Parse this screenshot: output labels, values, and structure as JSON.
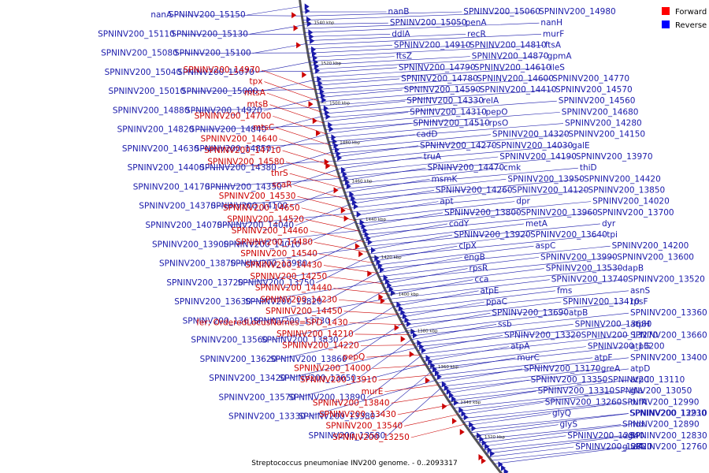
{
  "caption": "Streptococcus pneumoniae INV200 genome. - 0..2093317",
  "legend": [
    {
      "label": "Forward",
      "color": "#ff0000"
    },
    {
      "label": "Reverse",
      "color": "#0000ff"
    }
  ],
  "colors": {
    "forward": "#cc0000",
    "reverse": "#1a1aaa",
    "backbone": "#555555"
  },
  "ticks": [
    "1540 kbp",
    "1520 kbp",
    "1500 kbp",
    "1480 kbp",
    "1460 kbp",
    "1440 kbp",
    "1420 kbp",
    "1400 kbp",
    "1380 kbp",
    "1360 kbp",
    "1340 kbp",
    "1320 kbp"
  ],
  "left_labels_reverse": [
    "SPNINV200_15150",
    "nanA",
    "SPNINV200_15130",
    "SPNINV200_15110",
    "SPNINV200_15100",
    "SPNINV200_15080",
    "SPNINV200_15070",
    "SPNINV200_15040",
    "SPNINV200_15000",
    "SPNINV200_15010",
    "SPNINV200_14920",
    "SPNINV200_14880",
    "SPNINV200_14840",
    "SPNINV200_14820",
    "SPNINV200_14850",
    "SPNINV200_14630",
    "SPNINV200_14380",
    "SPNINV200_14400",
    "SPNINV200_14350",
    "SPNINV200_14170",
    "SPNINV200_14100",
    "SPNINV200_14370",
    "SPNINV200_14040",
    "SPNINV200_14070",
    "SPNINV200_14010",
    "SPNINV200_13900",
    "SPNINV200_13980",
    "SPNINV200_13870",
    "SPNINV200_13750",
    "SPNINV200_13720",
    "SPNINV200_13820",
    "SPNINV200_13630",
    "SPNINV200_13730",
    "SPNINV200_13610",
    "SPNINV200_13830",
    "SPNINV200_13560",
    "SPNINV200_13860",
    "SPNINV200_13620",
    "SPNINV200_13650",
    "SPNINV200_13420",
    "SPNINV200_13890",
    "SPNINV200_13570",
    "SPNINV200_13380",
    "SPNINV200_13330",
    "SPNINV200_13580"
  ],
  "left_labels_forward": [
    "SPNINV200_14970",
    "tpx",
    "mtsA",
    "mtsB",
    "SPNINV200_14700",
    "mtsC",
    "SPNINV200_14640",
    "SPNINV200_14710",
    "SPNINV200_14580",
    "thrS",
    "scaR",
    "SPNINV200_14530",
    "SPNINV200_14650",
    "SPNINV200_14520",
    "SPNINV200_14460",
    "SPNINV200_14480",
    "SPNINV200_14540",
    "SPNINV200_14430",
    "SPNINV200_14250",
    "SPNINV200_14440",
    "SPNINV200_14230",
    "SPNINV200_14450",
    "fer; OrderedLocusNames=SPD_1430",
    "SPNINV200_14210",
    "SPNINV200_14220",
    "pepQ",
    "SPNINV200_14000",
    "SPNINV200_13910",
    "murE",
    "SPNINV200_13840",
    "SPNINV200_13430",
    "SPNINV200_13540",
    "SPNINV200_13250"
  ],
  "right_labels_reverse": [
    "nanB",
    "SPNINV200_15060",
    "SPNINV200_14980",
    "SPNINV200_15050",
    "penA",
    "nanH",
    "ddlA",
    "recR",
    "murF",
    "SPNINV200_14910",
    "SPNINV200_14810",
    "ftsA",
    "ftsZ",
    "SPNINV200_14870",
    "gpmA",
    "SPNINV200_14790",
    "SPNINV200_14610",
    "ileS",
    "SPNINV200_14780",
    "SPNINV200_14600",
    "SPNINV200_14770",
    "SPNINV200_14590",
    "SPNINV200_14410",
    "SPNINV200_14570",
    "SPNINV200_14330",
    "relA",
    "SPNINV200_14560",
    "SPNINV200_14310",
    "pepO",
    "SPNINV200_14680",
    "SPNINV200_14510",
    "rpsO",
    "SPNINV200_14280",
    "cadD",
    "SPNINV200_14320",
    "SPNINV200_14150",
    "SPNINV200_14270",
    "SPNINV200_14030",
    "galE",
    "truA",
    "SPNINV200_14190",
    "SPNINV200_13970",
    "SPNINV200_14470",
    "cmk",
    "thiD",
    "msmK",
    "SPNINV200_13950",
    "SPNINV200_14420",
    "SPNINV200_14260",
    "SPNINV200_14120",
    "SPNINV200_13850",
    "apt",
    "dpr",
    "SPNINV200_14020",
    "SPNINV200_13800",
    "SPNINV200_13960",
    "SPNINV200_13700",
    "codY",
    "metA",
    "dyr",
    "SPNINV200_13920",
    "SPNINV200_13640",
    "tpi",
    "clpX",
    "aspC",
    "SPNINV200_14200",
    "engB",
    "SPNINV200_13990",
    "SPNINV200_13600",
    "rpsR",
    "SPNINV200_13530",
    "dapB",
    "cca",
    "SPNINV200_13740",
    "SPNINV200_13520",
    "atpE",
    "fms",
    "asnS",
    "ppaC",
    "SPNINV200_13410",
    "rpsF",
    "SPNINV200_13690",
    "atpB",
    "SPNINV200_13360",
    "ssb",
    "SPNINV200_13680",
    "atpH",
    "SPNINV200_13320",
    "SPNINV200_13270",
    "SPNINV200_13660",
    "atpA",
    "SPNINV200_13200",
    "atpG",
    "murC",
    "atpF",
    "SPNINV200_13400",
    "SPNINV200_13170",
    "greA",
    "atpD",
    "SPNINV200_13350",
    "SPNINV200_13110",
    "atpC",
    "SPNINV200_13310",
    "SPNINV200_13050",
    "gla",
    "SPNINV200_13260",
    "SPNINV200_12990",
    "tufA",
    "glyQ",
    "SPNINV200_13230",
    "SPNINV200_12910",
    "glyS",
    "SPNINV200_12890",
    "nox",
    "SPNINV200_12840",
    "ogt",
    "SPNINV200_12830",
    "SPNINV200_12820",
    "guaA",
    "SPNINV200_12760"
  ]
}
